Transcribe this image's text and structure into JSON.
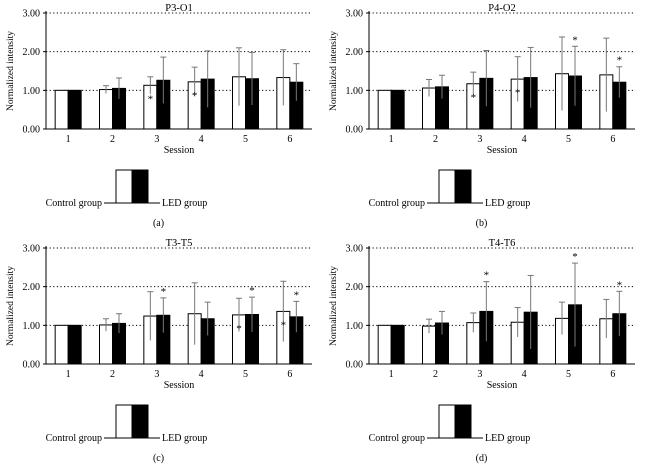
{
  "chart_data": [
    {
      "type": "bar",
      "panel_label": "(a)",
      "title": "P3-O1",
      "xlabel": "Session",
      "ylabel": "Normalized intensity",
      "categories": [
        "1",
        "2",
        "3",
        "4",
        "5",
        "6"
      ],
      "ylim": [
        0,
        3
      ],
      "yticks": [
        "0.00",
        "1.00",
        "2.00",
        "3.00"
      ],
      "gridlines": [
        1,
        2
      ],
      "series": [
        {
          "name": "Control group",
          "color": "#ffffff",
          "values": [
            1.0,
            1.02,
            1.13,
            1.22,
            1.35,
            1.33
          ],
          "errors": [
            0,
            0.1,
            0.22,
            0.38,
            0.75,
            0.72
          ],
          "stars": [
            false,
            false,
            true,
            true,
            false,
            false
          ]
        },
        {
          "name": "LED group",
          "color": "#000000",
          "values": [
            1.0,
            1.05,
            1.26,
            1.29,
            1.3,
            1.21
          ],
          "errors": [
            0,
            0.27,
            0.6,
            0.73,
            0.68,
            0.48
          ],
          "stars": [
            false,
            false,
            false,
            false,
            false,
            false
          ]
        }
      ],
      "legend": {
        "left_label": "Control group",
        "right_label": "LED group"
      }
    },
    {
      "type": "bar",
      "panel_label": "(b)",
      "title": "P4-O2",
      "xlabel": "Session",
      "ylabel": "Normalized intensity",
      "categories": [
        "1",
        "2",
        "3",
        "4",
        "5",
        "6"
      ],
      "ylim": [
        0,
        3
      ],
      "yticks": [
        "0.00",
        "1.00",
        "2.00",
        "3.00"
      ],
      "gridlines": [
        1,
        2
      ],
      "series": [
        {
          "name": "Control group",
          "color": "#ffffff",
          "values": [
            1.0,
            1.06,
            1.17,
            1.29,
            1.43,
            1.4
          ],
          "errors": [
            0,
            0.22,
            0.3,
            0.58,
            0.95,
            0.95
          ],
          "stars": [
            false,
            false,
            true,
            true,
            false,
            false
          ]
        },
        {
          "name": "LED group",
          "color": "#000000",
          "values": [
            1.0,
            1.09,
            1.31,
            1.33,
            1.37,
            1.21
          ],
          "errors": [
            0,
            0.3,
            0.72,
            0.78,
            0.77,
            0.4
          ],
          "stars": [
            false,
            false,
            false,
            false,
            true,
            true
          ]
        }
      ],
      "legend": {
        "left_label": "Control group",
        "right_label": "LED group"
      }
    },
    {
      "type": "bar",
      "panel_label": "(c)",
      "title": "T3-T5",
      "xlabel": "Session",
      "ylabel": "Normalized intensity",
      "categories": [
        "1",
        "2",
        "3",
        "4",
        "5",
        "6"
      ],
      "ylim": [
        0,
        3
      ],
      "yticks": [
        "0.00",
        "1.00",
        "2.00",
        "3.00"
      ],
      "gridlines": [
        1,
        2
      ],
      "series": [
        {
          "name": "Control group",
          "color": "#ffffff",
          "values": [
            1.0,
            1.01,
            1.24,
            1.3,
            1.27,
            1.36
          ],
          "errors": [
            0,
            0.16,
            0.63,
            0.8,
            0.43,
            0.78
          ],
          "stars": [
            false,
            false,
            false,
            false,
            true,
            true
          ]
        },
        {
          "name": "LED group",
          "color": "#000000",
          "values": [
            1.0,
            1.05,
            1.26,
            1.17,
            1.28,
            1.22
          ],
          "errors": [
            0,
            0.25,
            0.45,
            0.43,
            0.45,
            0.4
          ],
          "stars": [
            false,
            false,
            true,
            false,
            true,
            true
          ]
        }
      ],
      "legend": {
        "left_label": "Control group",
        "right_label": "LED group"
      }
    },
    {
      "type": "bar",
      "panel_label": "(d)",
      "title": "T4-T6",
      "xlabel": "Session",
      "ylabel": "Normalized intensity",
      "categories": [
        "1",
        "2",
        "3",
        "4",
        "5",
        "6"
      ],
      "ylim": [
        0,
        3
      ],
      "yticks": [
        "0.00",
        "1.00",
        "2.00",
        "3.00"
      ],
      "gridlines": [
        1,
        2
      ],
      "series": [
        {
          "name": "Control group",
          "color": "#ffffff",
          "values": [
            1.0,
            0.98,
            1.07,
            1.08,
            1.18,
            1.17
          ],
          "errors": [
            0,
            0.18,
            0.25,
            0.38,
            0.42,
            0.5
          ],
          "stars": [
            false,
            false,
            false,
            false,
            false,
            false
          ]
        },
        {
          "name": "LED group",
          "color": "#000000",
          "values": [
            1.0,
            1.06,
            1.36,
            1.34,
            1.53,
            1.3
          ],
          "errors": [
            0,
            0.3,
            0.77,
            0.95,
            1.08,
            0.58
          ],
          "stars": [
            false,
            false,
            true,
            false,
            true,
            true
          ]
        }
      ],
      "legend": {
        "left_label": "Control group",
        "right_label": "LED group"
      }
    }
  ]
}
